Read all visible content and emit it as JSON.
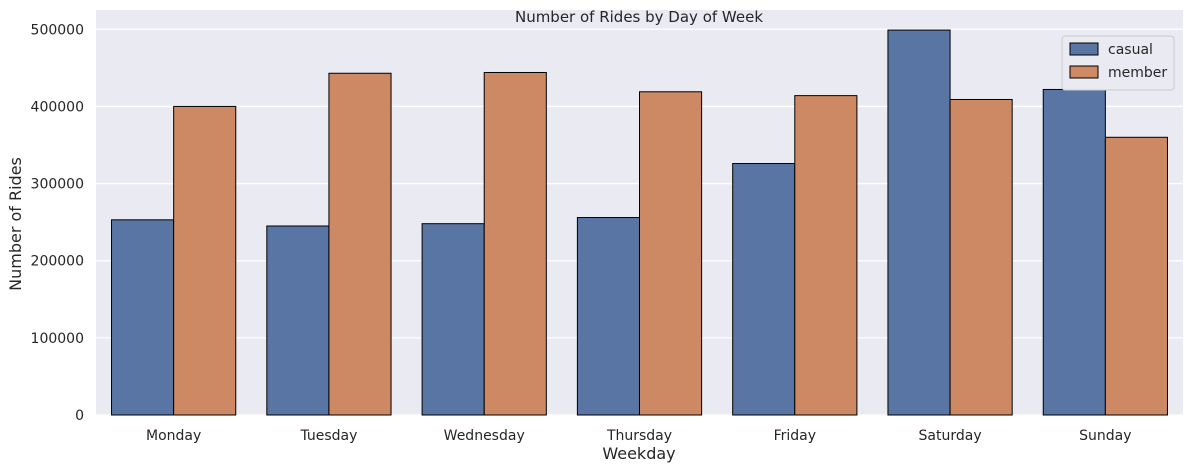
{
  "chart_data": {
    "type": "bar",
    "title": "Number of Rides by Day of Week",
    "xlabel": "Weekday",
    "ylabel": "Number of Rides",
    "categories": [
      "Monday",
      "Tuesday",
      "Wednesday",
      "Thursday",
      "Friday",
      "Saturday",
      "Sunday"
    ],
    "series": [
      {
        "name": "casual",
        "color": "#5875a4",
        "values": [
          253000,
          245000,
          248000,
          256000,
          326000,
          499000,
          422000
        ]
      },
      {
        "name": "member",
        "color": "#cc8963",
        "values": [
          400000,
          443000,
          444000,
          419000,
          414000,
          409000,
          360000
        ]
      }
    ],
    "ylim": [
      0,
      525000
    ],
    "yticks": [
      0,
      100000,
      200000,
      300000,
      400000,
      500000
    ],
    "ytick_labels": [
      "0",
      "100000",
      "200000",
      "300000",
      "400000",
      "500000"
    ],
    "grid": true,
    "legend_position": "top-right",
    "background_color": "#eaeaf2"
  }
}
